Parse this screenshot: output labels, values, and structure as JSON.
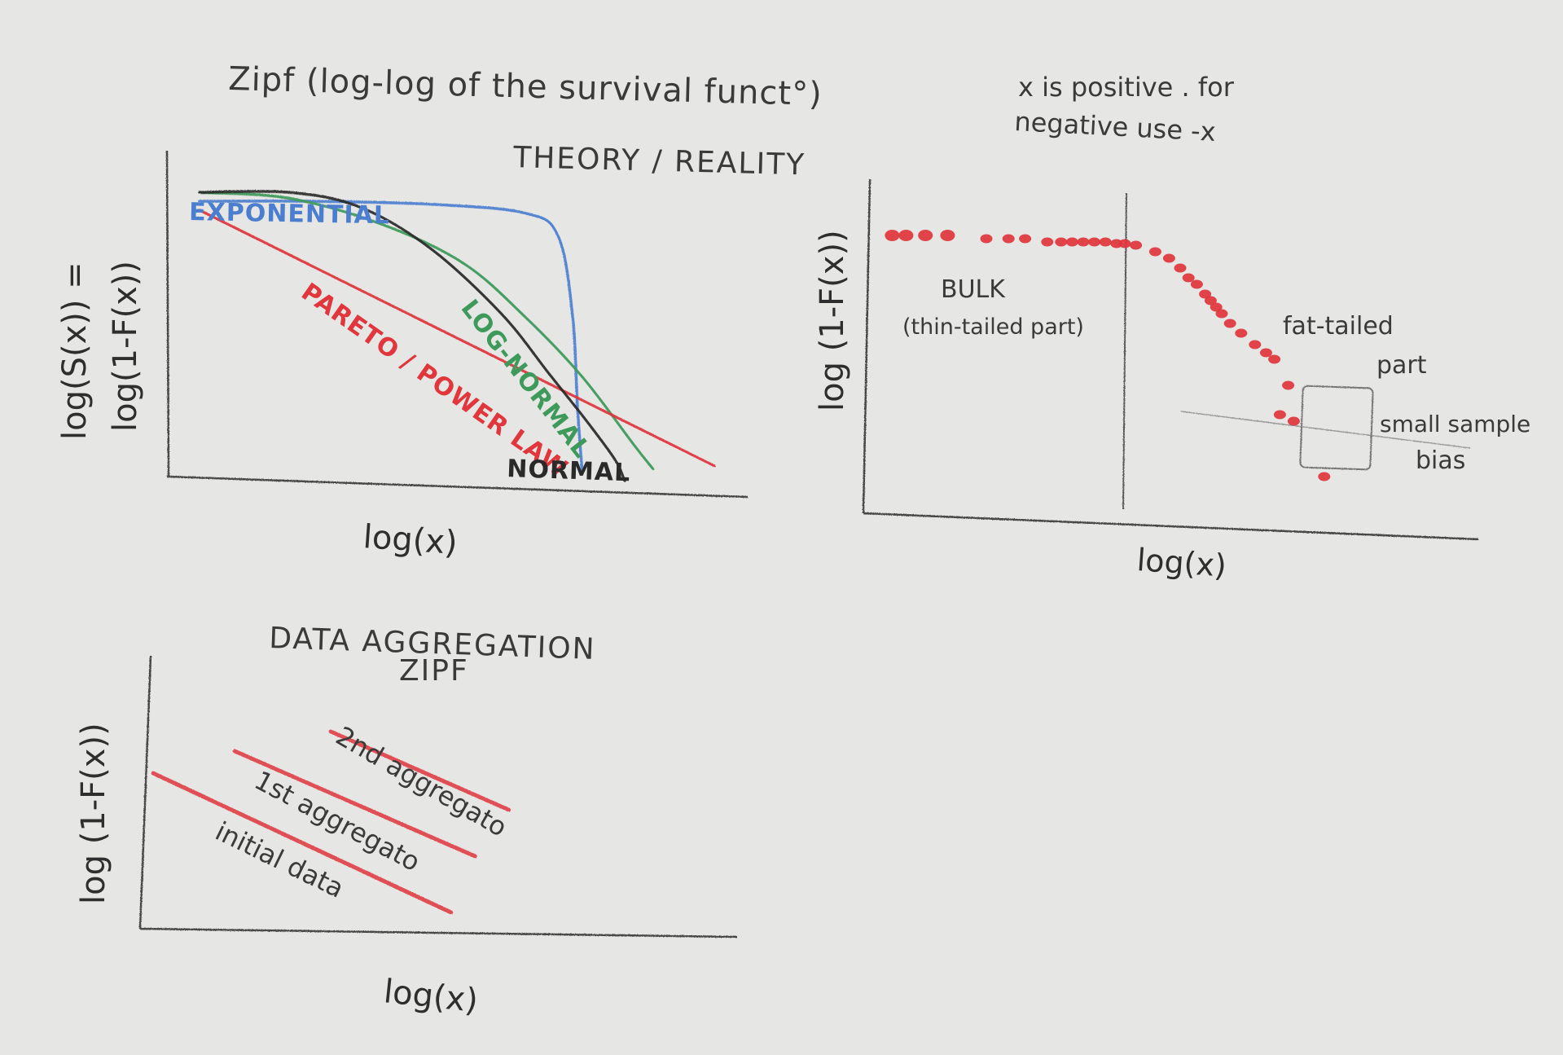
{
  "colors": {
    "paper": "#e6e6e4",
    "pencil": "#474747",
    "red": "#e0363c",
    "green": "#3e9a5a",
    "blue": "#4c7ed0",
    "black": "#2a2a2a",
    "box": "#777777"
  },
  "header": {
    "title": "Zipf (log-log of the survival funct°)",
    "note_line1": "x is positive . for",
    "note_line2": "negative use -x"
  },
  "chart_data": [
    {
      "type": "line",
      "title": "THEORY / REALITY",
      "xlabel": "log(x)",
      "ylabel_line1": "log(S(x)) =",
      "ylabel_line2": "log(1-F(x))",
      "xlim": [
        0,
        10
      ],
      "ylim": [
        0,
        10
      ],
      "series": [
        {
          "name": "EXPONENTIAL",
          "color": "#4c7ed0",
          "x": [
            0.6,
            3.0,
            5.5,
            7.5,
            8.2,
            8.5,
            8.6,
            8.7
          ],
          "y": [
            9.4,
            9.4,
            9.3,
            9.0,
            8.2,
            5.5,
            2.5,
            0.3
          ]
        },
        {
          "name": "LOG-NORMAL",
          "color": "#3e9a5a",
          "x": [
            0.6,
            2.5,
            4.5,
            6.2,
            7.5,
            8.7,
            9.8,
            10.2
          ],
          "y": [
            9.7,
            9.5,
            8.6,
            7.3,
            5.5,
            3.5,
            1.2,
            0.4
          ]
        },
        {
          "name": "PARETO / POWER LAW",
          "color": "#e0363c",
          "x": [
            0.6,
            11.5
          ],
          "y": [
            9.1,
            0.5
          ]
        },
        {
          "name": "NORMAL",
          "color": "#2a2a2a",
          "x": [
            0.6,
            2.5,
            4.0,
            5.5,
            7.0,
            8.0,
            8.8,
            9.4,
            9.6
          ],
          "y": [
            9.7,
            9.7,
            9.2,
            7.8,
            5.6,
            3.6,
            2.0,
            0.7,
            0.0
          ]
        }
      ]
    },
    {
      "type": "scatter",
      "xlabel": "log(x)",
      "ylabel": "log (1-F(x))",
      "xlim": [
        0,
        10
      ],
      "ylim": [
        0,
        10
      ],
      "divider_x": 4.5,
      "points": [
        {
          "x": 0.3,
          "y": 8.4
        },
        {
          "x": 0.55,
          "y": 8.4
        },
        {
          "x": 0.9,
          "y": 8.4
        },
        {
          "x": 1.3,
          "y": 8.4
        },
        {
          "x": 2.0,
          "y": 8.3
        },
        {
          "x": 2.4,
          "y": 8.3
        },
        {
          "x": 2.7,
          "y": 8.3
        },
        {
          "x": 3.1,
          "y": 8.2
        },
        {
          "x": 3.35,
          "y": 8.2
        },
        {
          "x": 3.55,
          "y": 8.2
        },
        {
          "x": 3.75,
          "y": 8.2
        },
        {
          "x": 3.95,
          "y": 8.2
        },
        {
          "x": 4.15,
          "y": 8.2
        },
        {
          "x": 4.35,
          "y": 8.15
        },
        {
          "x": 4.5,
          "y": 8.15
        },
        {
          "x": 4.7,
          "y": 8.1
        },
        {
          "x": 5.05,
          "y": 7.9
        },
        {
          "x": 5.3,
          "y": 7.7
        },
        {
          "x": 5.5,
          "y": 7.4
        },
        {
          "x": 5.65,
          "y": 7.1
        },
        {
          "x": 5.8,
          "y": 6.9
        },
        {
          "x": 5.95,
          "y": 6.6
        },
        {
          "x": 6.05,
          "y": 6.4
        },
        {
          "x": 6.15,
          "y": 6.2
        },
        {
          "x": 6.25,
          "y": 6.0
        },
        {
          "x": 6.4,
          "y": 5.7
        },
        {
          "x": 6.6,
          "y": 5.4
        },
        {
          "x": 6.85,
          "y": 5.05
        },
        {
          "x": 7.05,
          "y": 4.8
        },
        {
          "x": 7.2,
          "y": 4.6
        },
        {
          "x": 7.45,
          "y": 3.8
        },
        {
          "x": 7.3,
          "y": 2.9
        },
        {
          "x": 7.55,
          "y": 2.7
        },
        {
          "x": 8.1,
          "y": 1.0
        }
      ],
      "annotations": {
        "bulk_line1": "BULK",
        "bulk_line2": "(thin-tailed part)",
        "tail_line1": "fat-tailed",
        "tail_line2": "part",
        "bias_line1": "small sample",
        "bias_line2": "bias"
      }
    },
    {
      "type": "line",
      "title_line1": "DATA AGGREGATION",
      "title_line2": "ZIPF",
      "xlabel": "log(x)",
      "ylabel": "log (1-F(x))",
      "xlim": [
        0,
        10
      ],
      "ylim": [
        0,
        10
      ],
      "series": [
        {
          "name": "2nd aggregato",
          "color": "#e0363c",
          "x": [
            3.8,
            7.5
          ],
          "y": [
            7.9,
            4.7
          ]
        },
        {
          "name": "1st aggregato",
          "color": "#e0363c",
          "x": [
            1.8,
            6.8
          ],
          "y": [
            7.1,
            2.8
          ]
        },
        {
          "name": "initial data",
          "color": "#e0363c",
          "x": [
            0.1,
            6.3
          ],
          "y": [
            6.2,
            0.5
          ]
        }
      ]
    }
  ]
}
